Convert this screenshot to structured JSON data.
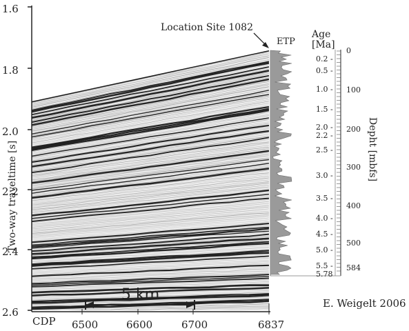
{
  "figure": {
    "location_label": "Location Site 1082",
    "etp_label": "ETP",
    "age_label": "Age",
    "age_unit": "[Ma]",
    "depth_label": "Depht [mbfs]",
    "y_axis_label": "Two-way traveltime [s]",
    "credit": "E. Weigelt 2006",
    "scale_bar_label": "5 km",
    "cdp_label": "CDP",
    "y_ticks": [
      "1.6",
      "1.8",
      "2.0",
      "2.2",
      "2.4",
      "2.6"
    ],
    "cdp_ticks": [
      "6500",
      "6600",
      "6700",
      "6837"
    ],
    "age_ticks": [
      "0.2 -",
      "0.5 -",
      "1.0 -",
      "1.5 -",
      "2.0 -",
      "2.2 -",
      "2.5 -",
      "3.0 -",
      "3.5 -",
      "4.0 -",
      "4.5 -",
      "5.0 -",
      "5.5 -",
      "5.78"
    ],
    "depth_ticks": [
      "0",
      "100",
      "200",
      "300",
      "400",
      "500",
      "584"
    ]
  },
  "colors": {
    "seismic_dark": "#1a1a1a",
    "seismic_mid": "#8a8a8a",
    "etp_fill": "#9a9a9a",
    "axis": "#222222"
  }
}
